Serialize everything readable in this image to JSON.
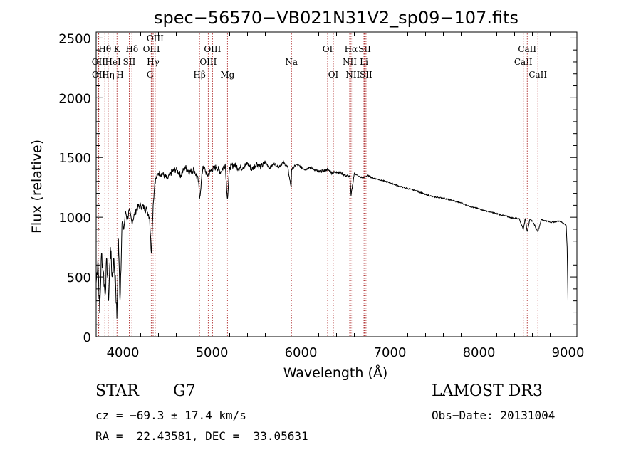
{
  "chart_data": {
    "type": "line",
    "title": "spec−56570−VB021N31V2_sp09−107.fits",
    "xlabel": "Wavelength (Å)",
    "ylabel": "Flux (relative)",
    "xlim": [
      3700,
      9100
    ],
    "ylim": [
      0,
      2550
    ],
    "xticks": [
      4000,
      5000,
      6000,
      7000,
      8000,
      9000
    ],
    "yticks": [
      0,
      500,
      1000,
      1500,
      2000,
      2500
    ],
    "series": [
      {
        "name": "flux",
        "x": [
          3700,
          3720,
          3740,
          3760,
          3780,
          3800,
          3820,
          3840,
          3860,
          3880,
          3900,
          3920,
          3933,
          3950,
          3968,
          3990,
          4010,
          4030,
          4050,
          4070,
          4101,
          4130,
          4160,
          4200,
          4240,
          4270,
          4300,
          4320,
          4340,
          4360,
          4400,
          4450,
          4500,
          4550,
          4600,
          4650,
          4700,
          4750,
          4800,
          4850,
          4861,
          4900,
          4950,
          5000,
          5050,
          5100,
          5150,
          5175,
          5200,
          5250,
          5300,
          5350,
          5400,
          5450,
          5500,
          5550,
          5600,
          5650,
          5700,
          5750,
          5800,
          5850,
          5890,
          5895,
          5950,
          6000,
          6050,
          6100,
          6150,
          6200,
          6250,
          6300,
          6350,
          6400,
          6450,
          6500,
          6550,
          6563,
          6600,
          6650,
          6700,
          6750,
          6800,
          6850,
          6900,
          6950,
          7000,
          7100,
          7200,
          7300,
          7400,
          7500,
          7600,
          7700,
          7800,
          7900,
          8000,
          8100,
          8200,
          8300,
          8400,
          8450,
          8498,
          8520,
          8542,
          8570,
          8600,
          8662,
          8700,
          8750,
          8800,
          8850,
          8900,
          8950,
          8980,
          8990,
          9000
        ],
        "y": [
          450,
          650,
          200,
          700,
          550,
          350,
          650,
          300,
          750,
          500,
          650,
          400,
          150,
          820,
          300,
          950,
          900,
          1050,
          980,
          1060,
          960,
          1020,
          1080,
          1100,
          1080,
          1060,
          1000,
          700,
          1100,
          1300,
          1370,
          1360,
          1320,
          1380,
          1400,
          1350,
          1420,
          1380,
          1400,
          1300,
          1150,
          1430,
          1350,
          1400,
          1420,
          1380,
          1440,
          1150,
          1420,
          1440,
          1410,
          1420,
          1450,
          1400,
          1450,
          1420,
          1460,
          1410,
          1450,
          1420,
          1460,
          1420,
          1250,
          1400,
          1440,
          1420,
          1400,
          1420,
          1400,
          1380,
          1390,
          1400,
          1370,
          1380,
          1370,
          1350,
          1340,
          1180,
          1370,
          1340,
          1330,
          1350,
          1330,
          1320,
          1310,
          1300,
          1290,
          1260,
          1240,
          1220,
          1190,
          1170,
          1160,
          1140,
          1120,
          1090,
          1070,
          1050,
          1030,
          1010,
          990,
          990,
          900,
          990,
          880,
          980,
          970,
          880,
          980,
          970,
          960,
          960,
          970,
          950,
          930,
          750,
          300
        ]
      }
    ],
    "spectral_lines": [
      {
        "label": "Hθ",
        "wl": 3798,
        "row": 1
      },
      {
        "label": "OII",
        "wl": 3727,
        "row": 2
      },
      {
        "label": "OII",
        "wl": 3729,
        "row": 3
      },
      {
        "label": "Hη",
        "wl": 3835,
        "row": 3
      },
      {
        "label": "HeI",
        "wl": 3889,
        "row": 2
      },
      {
        "label": "K",
        "wl": 3934,
        "row": 1
      },
      {
        "label": "H",
        "wl": 3968,
        "row": 3
      },
      {
        "label": "SII",
        "wl": 4072,
        "row": 2
      },
      {
        "label": "Hδ",
        "wl": 4102,
        "row": 1
      },
      {
        "label": "G",
        "wl": 4305,
        "row": 3
      },
      {
        "label": "OIII",
        "wl": 4321,
        "row": 1
      },
      {
        "label": "Hγ",
        "wl": 4340,
        "row": 2
      },
      {
        "label": "OIII",
        "wl": 4363,
        "row": 0
      },
      {
        "label": "Hβ",
        "wl": 4861,
        "row": 3
      },
      {
        "label": "OIII",
        "wl": 4959,
        "row": 2
      },
      {
        "label": "OIII",
        "wl": 5007,
        "row": 1
      },
      {
        "label": "Mg",
        "wl": 5175,
        "row": 3
      },
      {
        "label": "Na",
        "wl": 5894,
        "row": 2
      },
      {
        "label": "OI",
        "wl": 6300,
        "row": 1
      },
      {
        "label": "OI",
        "wl": 6364,
        "row": 3
      },
      {
        "label": "NII",
        "wl": 6548,
        "row": 2
      },
      {
        "label": "Hα",
        "wl": 6563,
        "row": 1
      },
      {
        "label": "NII",
        "wl": 6583,
        "row": 3
      },
      {
        "label": "Li",
        "wl": 6708,
        "row": 2
      },
      {
        "label": "SII",
        "wl": 6716,
        "row": 1
      },
      {
        "label": "SII",
        "wl": 6731,
        "row": 3
      },
      {
        "label": "CaII",
        "wl": 8498,
        "row": 2
      },
      {
        "label": "CaII",
        "wl": 8542,
        "row": 1
      },
      {
        "label": "CaII",
        "wl": 8662,
        "row": 3
      }
    ]
  },
  "info": {
    "class": "STAR",
    "subclass": "G7",
    "survey": "LAMOST DR3",
    "cz": "cz = −69.3 ± 17.4 km/s",
    "obs_date": "Obs−Date: 20131004",
    "coords": "RA =  22.43581, DEC =  33.05631"
  },
  "colors": {
    "line_marker": "#b03030",
    "spectrum": "#000000",
    "axes": "#000000"
  }
}
